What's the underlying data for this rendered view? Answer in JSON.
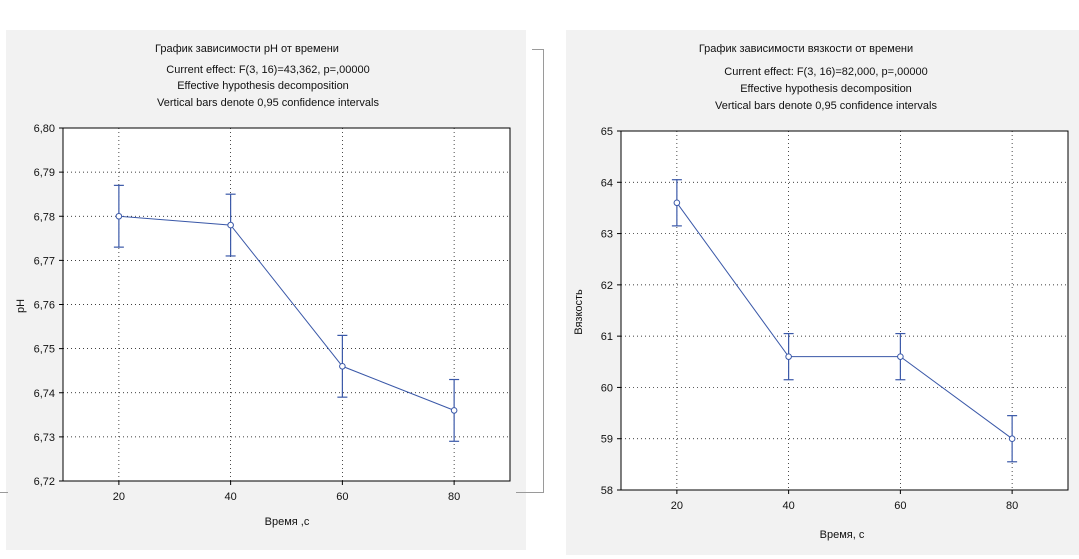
{
  "chart_data": [
    {
      "type": "line",
      "title": "График зависимости pH от времени",
      "subtitle": [
        "Current effect: F(3, 16)=43,362, p=,00000",
        "Effective hypothesis decomposition",
        "Vertical bars denote 0,95 confidence intervals"
      ],
      "xlabel": "Время ,с",
      "ylabel": "pH",
      "x": [
        20,
        40,
        60,
        80
      ],
      "xticks": [
        "20",
        "40",
        "60",
        "80"
      ],
      "xlim": [
        10,
        90
      ],
      "ylim": [
        6.72,
        6.8
      ],
      "yticks": [
        "6,72",
        "6,73",
        "6,74",
        "6,75",
        "6,76",
        "6,77",
        "6,78",
        "6,79",
        "6,80"
      ],
      "series": [
        {
          "values": [
            6.78,
            6.778,
            6.746,
            6.736
          ],
          "ci_low": [
            6.773,
            6.771,
            6.739,
            6.729
          ],
          "ci_high": [
            6.787,
            6.785,
            6.753,
            6.743
          ]
        }
      ],
      "grid": true,
      "line_color": "#3a58a8"
    },
    {
      "type": "line",
      "title": "График зависимости вязкости от времени",
      "subtitle": [
        "Current effect: F(3, 16)=82,000, p=,00000",
        "Effective hypothesis decomposition",
        "Vertical bars denote 0,95 confidence intervals"
      ],
      "xlabel": "Время, с",
      "ylabel": "Вязкость",
      "x": [
        20,
        40,
        60,
        80
      ],
      "xticks": [
        "20",
        "40",
        "60",
        "80"
      ],
      "xlim": [
        10,
        90
      ],
      "ylim": [
        58,
        65
      ],
      "yticks": [
        "58",
        "59",
        "60",
        "61",
        "62",
        "63",
        "64",
        "65"
      ],
      "series": [
        {
          "values": [
            63.6,
            60.6,
            60.6,
            59.0
          ],
          "ci_low": [
            63.15,
            60.15,
            60.15,
            58.55
          ],
          "ci_high": [
            64.05,
            61.05,
            61.05,
            59.45
          ]
        }
      ],
      "grid": true,
      "line_color": "#3a58a8"
    }
  ]
}
